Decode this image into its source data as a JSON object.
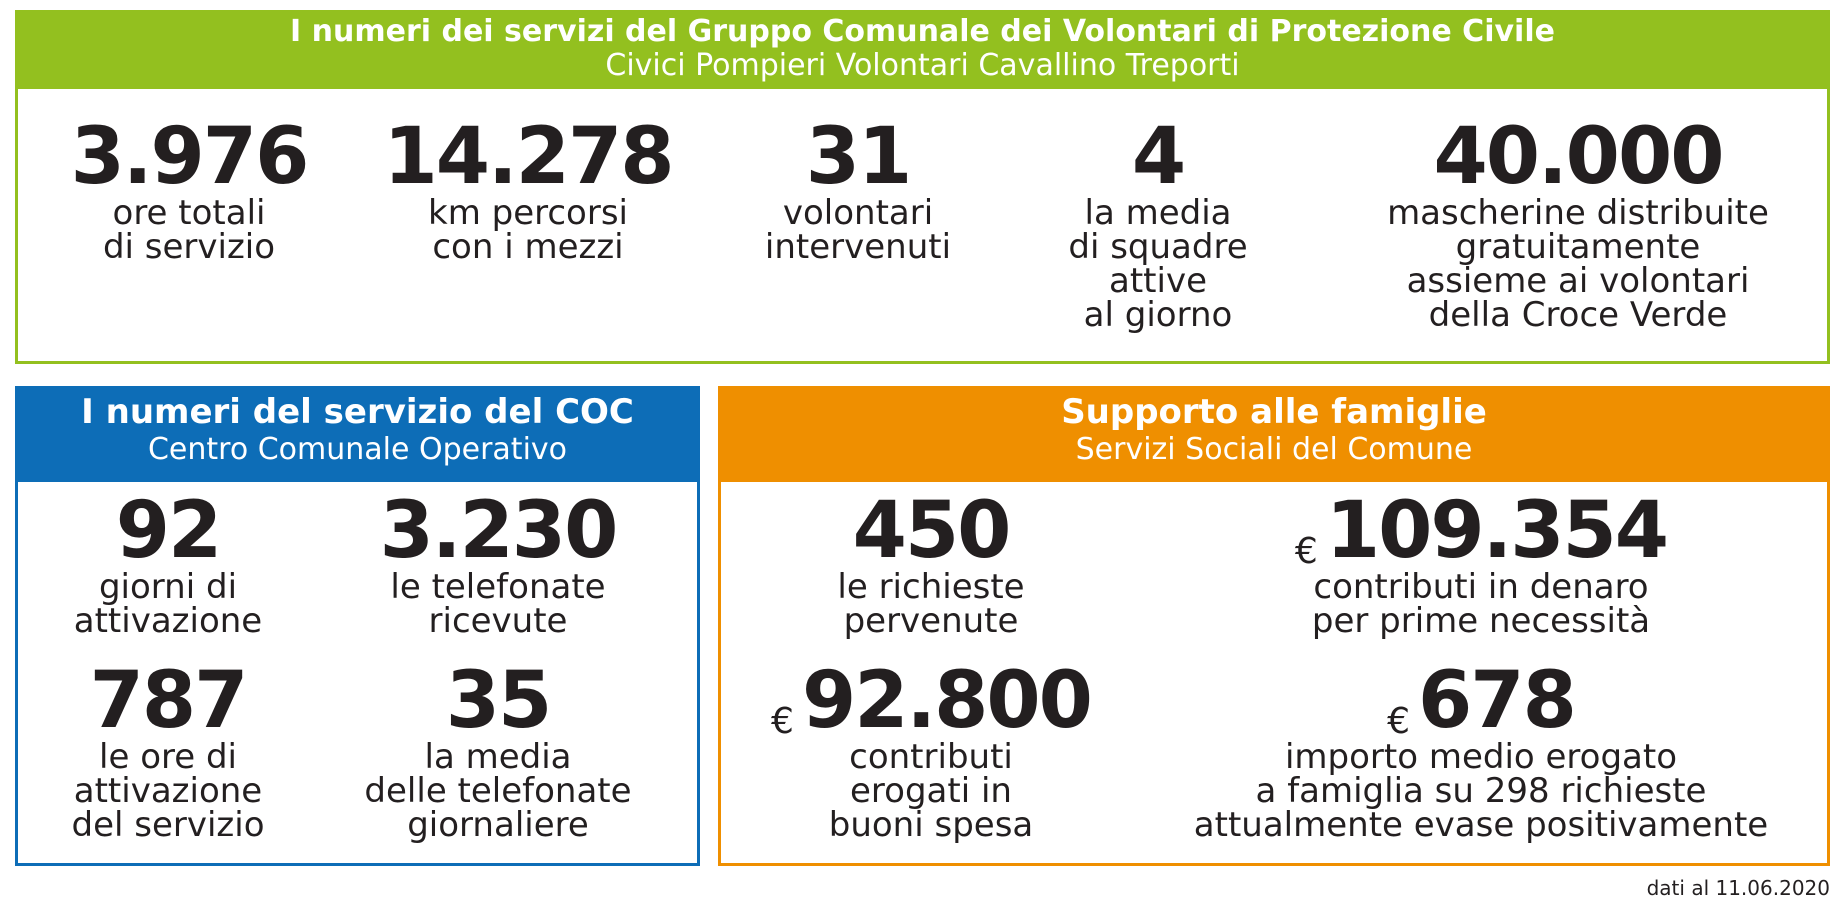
{
  "protezione_civile": {
    "title": "I numeri dei servizi del Gruppo Comunale dei Volontari di Protezione Civile",
    "subtitle": "Civici Pompieri Volontari Cavallino Treporti",
    "stats": [
      {
        "value": "3.976",
        "label": "ore totali\ndi servizio"
      },
      {
        "value": "14.278",
        "label": "km percorsi\ncon i mezzi"
      },
      {
        "value": "31",
        "label": "volontari\nintervenuti"
      },
      {
        "value": "4",
        "label": "la media\ndi squadre\nattive\nal giorno"
      },
      {
        "value": "40.000",
        "label": "mascherine distribuite\ngratuitamente\nassieme ai volontari\ndella Croce Verde"
      }
    ],
    "color": "#93c01f"
  },
  "coc": {
    "title": "I numeri del servizio del COC",
    "subtitle": "Centro Comunale Operativo",
    "stats": [
      {
        "value": "92",
        "label": "giorni di\nattivazione"
      },
      {
        "value": "3.230",
        "label": "le telefonate\nricevute"
      },
      {
        "value": "787",
        "label": "le ore di\nattivazione\ndel servizio"
      },
      {
        "value": "35",
        "label": "la media\ndelle telefonate\ngiornaliere"
      }
    ],
    "color": "#0d6db7"
  },
  "famiglie": {
    "title": "Supporto alle famiglie",
    "subtitle": "Servizi Sociali del Comune",
    "currency": "€",
    "stats": [
      {
        "value": "450",
        "label": "le richieste\npervenute"
      },
      {
        "value": "109.354",
        "label": "contributi in denaro\nper prime necessità"
      },
      {
        "value": "92.800",
        "label": "contributi\nerogati in\nbuoni spesa"
      },
      {
        "value": "678",
        "label": "importo medio erogato\na famiglia su 298 richieste\nattualmente evase positivamente"
      }
    ],
    "color": "#ef8f00"
  },
  "footer": {
    "date_note": "dati al 11.06.2020"
  }
}
